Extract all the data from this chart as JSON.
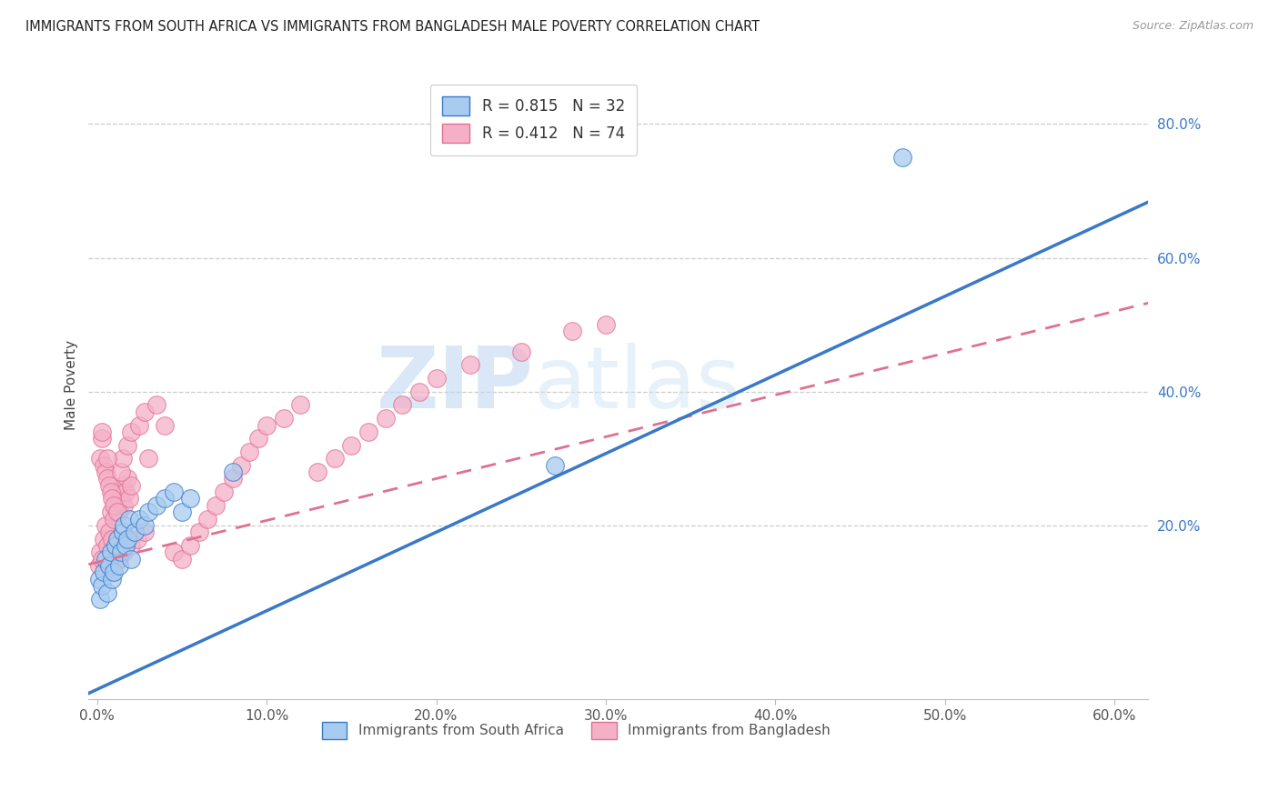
{
  "title": "IMMIGRANTS FROM SOUTH AFRICA VS IMMIGRANTS FROM BANGLADESH MALE POVERTY CORRELATION CHART",
  "source": "Source: ZipAtlas.com",
  "ylabel": "Male Poverty",
  "xlim": [
    -0.005,
    0.62
  ],
  "ylim": [
    -0.06,
    0.88
  ],
  "xtick_labels": [
    "0.0%",
    "",
    "",
    "",
    "",
    "",
    "10.0%",
    "",
    "",
    "",
    "",
    "",
    "20.0%",
    "",
    "",
    "",
    "",
    "",
    "30.0%",
    "",
    "",
    "",
    "",
    "",
    "40.0%",
    "",
    "",
    "",
    "",
    "",
    "50.0%",
    "",
    "",
    "",
    "",
    "",
    "60.0%"
  ],
  "xtick_vals": [
    0.0,
    0.1,
    0.2,
    0.3,
    0.4,
    0.5,
    0.6
  ],
  "xtick_display": [
    "0.0%",
    "10.0%",
    "20.0%",
    "30.0%",
    "40.0%",
    "50.0%",
    "60.0%"
  ],
  "ytick_vals": [
    0.2,
    0.4,
    0.6,
    0.8
  ],
  "ytick_labels": [
    "20.0%",
    "40.0%",
    "60.0%",
    "80.0%"
  ],
  "legend_r1": "R = 0.815",
  "legend_n1": "N = 32",
  "legend_r2": "R = 0.412",
  "legend_n2": "N = 74",
  "color_sa": "#A8CCF0",
  "color_bd": "#F5B0C8",
  "line_color_sa": "#3A78C8",
  "line_color_bd": "#E07090",
  "watermark_zip": "ZIP",
  "watermark_atlas": "atlas",
  "sa_line_x0": 0.0,
  "sa_line_y0": -0.045,
  "sa_line_x1": 0.6,
  "sa_line_y1": 0.66,
  "bd_line_x0": 0.0,
  "bd_line_y0": 0.145,
  "bd_line_x1": 0.6,
  "bd_line_y1": 0.52,
  "sa_scatter_x": [
    0.001,
    0.002,
    0.003,
    0.004,
    0.005,
    0.006,
    0.007,
    0.008,
    0.009,
    0.01,
    0.011,
    0.012,
    0.013,
    0.014,
    0.015,
    0.016,
    0.017,
    0.018,
    0.019,
    0.02,
    0.022,
    0.025,
    0.028,
    0.03,
    0.035,
    0.04,
    0.045,
    0.05,
    0.055,
    0.08,
    0.27,
    0.475
  ],
  "sa_scatter_y": [
    0.12,
    0.09,
    0.11,
    0.13,
    0.15,
    0.1,
    0.14,
    0.16,
    0.12,
    0.13,
    0.17,
    0.18,
    0.14,
    0.16,
    0.19,
    0.2,
    0.17,
    0.18,
    0.21,
    0.15,
    0.19,
    0.21,
    0.2,
    0.22,
    0.23,
    0.24,
    0.25,
    0.22,
    0.24,
    0.28,
    0.29,
    0.75
  ],
  "bd_scatter_x": [
    0.001,
    0.002,
    0.003,
    0.004,
    0.005,
    0.006,
    0.007,
    0.008,
    0.009,
    0.01,
    0.011,
    0.012,
    0.013,
    0.014,
    0.015,
    0.016,
    0.017,
    0.018,
    0.019,
    0.02,
    0.002,
    0.004,
    0.005,
    0.006,
    0.007,
    0.008,
    0.009,
    0.01,
    0.012,
    0.014,
    0.015,
    0.018,
    0.02,
    0.025,
    0.028,
    0.03,
    0.035,
    0.04,
    0.045,
    0.05,
    0.055,
    0.06,
    0.065,
    0.07,
    0.075,
    0.08,
    0.085,
    0.09,
    0.095,
    0.1,
    0.11,
    0.12,
    0.13,
    0.14,
    0.15,
    0.16,
    0.17,
    0.18,
    0.19,
    0.2,
    0.003,
    0.006,
    0.003,
    0.22,
    0.25,
    0.28,
    0.3,
    0.008,
    0.01,
    0.013,
    0.016,
    0.02,
    0.024,
    0.028
  ],
  "bd_scatter_y": [
    0.14,
    0.16,
    0.15,
    0.18,
    0.2,
    0.17,
    0.19,
    0.22,
    0.18,
    0.21,
    0.23,
    0.25,
    0.22,
    0.24,
    0.26,
    0.23,
    0.25,
    0.27,
    0.24,
    0.26,
    0.3,
    0.29,
    0.28,
    0.27,
    0.26,
    0.25,
    0.24,
    0.23,
    0.22,
    0.28,
    0.3,
    0.32,
    0.34,
    0.35,
    0.37,
    0.3,
    0.38,
    0.35,
    0.16,
    0.15,
    0.17,
    0.19,
    0.21,
    0.23,
    0.25,
    0.27,
    0.29,
    0.31,
    0.33,
    0.35,
    0.36,
    0.38,
    0.28,
    0.3,
    0.32,
    0.34,
    0.36,
    0.38,
    0.4,
    0.42,
    0.33,
    0.3,
    0.34,
    0.44,
    0.46,
    0.49,
    0.5,
    0.13,
    0.14,
    0.15,
    0.16,
    0.17,
    0.18,
    0.19
  ]
}
